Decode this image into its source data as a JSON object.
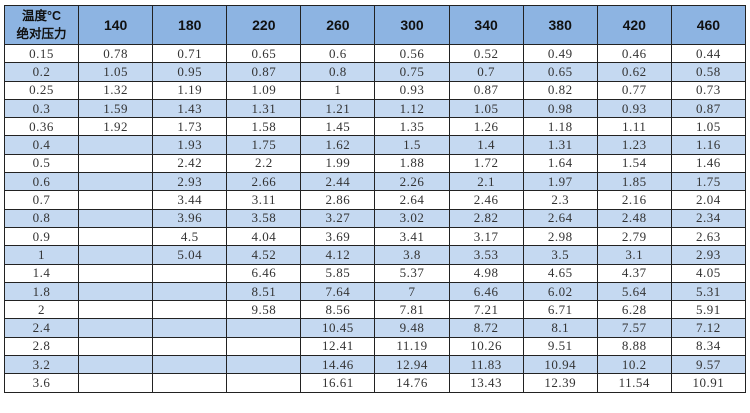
{
  "table": {
    "corner_label_top": "温度°C",
    "corner_label_bottom": "绝对压力",
    "header_colors": {
      "header": "#8db4e2",
      "alt_row": "#c5d9f1"
    },
    "columns": [
      "140",
      "180",
      "220",
      "260",
      "300",
      "340",
      "380",
      "420",
      "460"
    ],
    "rows": [
      {
        "pressure": "0.15",
        "values": [
          "0.78",
          "0.71",
          "0.65",
          "0.6",
          "0.56",
          "0.52",
          "0.49",
          "0.46",
          "0.44"
        ]
      },
      {
        "pressure": "0.2",
        "values": [
          "1.05",
          "0.95",
          "0.87",
          "0.8",
          "0.75",
          "0.7",
          "0.65",
          "0.62",
          "0.58"
        ]
      },
      {
        "pressure": "0.25",
        "values": [
          "1.32",
          "1.19",
          "1.09",
          "1",
          "0.93",
          "0.87",
          "0.82",
          "0.77",
          "0.73"
        ]
      },
      {
        "pressure": "0.3",
        "values": [
          "1.59",
          "1.43",
          "1.31",
          "1.21",
          "1.12",
          "1.05",
          "0.98",
          "0.93",
          "0.87"
        ]
      },
      {
        "pressure": "0.36",
        "values": [
          "1.92",
          "1.73",
          "1.58",
          "1.45",
          "1.35",
          "1.26",
          "1.18",
          "1.11",
          "1.05"
        ]
      },
      {
        "pressure": "0.4",
        "values": [
          "",
          "1.93",
          "1.75",
          "1.62",
          "1.5",
          "1.4",
          "1.31",
          "1.23",
          "1.16"
        ]
      },
      {
        "pressure": "0.5",
        "values": [
          "",
          "2.42",
          "2.2",
          "1.99",
          "1.88",
          "1.72",
          "1.64",
          "1.54",
          "1.46"
        ]
      },
      {
        "pressure": "0.6",
        "values": [
          "",
          "2.93",
          "2.66",
          "2.44",
          "2.26",
          "2.1",
          "1.97",
          "1.85",
          "1.75"
        ]
      },
      {
        "pressure": "0.7",
        "values": [
          "",
          "3.44",
          "3.11",
          "2.86",
          "2.64",
          "2.46",
          "2.3",
          "2.16",
          "2.04"
        ]
      },
      {
        "pressure": "0.8",
        "values": [
          "",
          "3.96",
          "3.58",
          "3.27",
          "3.02",
          "2.82",
          "2.64",
          "2.48",
          "2.34"
        ]
      },
      {
        "pressure": "0.9",
        "values": [
          "",
          "4.5",
          "4.04",
          "3.69",
          "3.41",
          "3.17",
          "2.98",
          "2.79",
          "2.63"
        ]
      },
      {
        "pressure": "1",
        "values": [
          "",
          "5.04",
          "4.52",
          "4.12",
          "3.8",
          "3.53",
          "3.5",
          "3.1",
          "2.93"
        ]
      },
      {
        "pressure": "1.4",
        "values": [
          "",
          "",
          "6.46",
          "5.85",
          "5.37",
          "4.98",
          "4.65",
          "4.37",
          "4.05"
        ]
      },
      {
        "pressure": "1.8",
        "values": [
          "",
          "",
          "8.51",
          "7.64",
          "7",
          "6.46",
          "6.02",
          "5.64",
          "5.31"
        ]
      },
      {
        "pressure": "2",
        "values": [
          "",
          "",
          "9.58",
          "8.56",
          "7.81",
          "7.21",
          "6.71",
          "6.28",
          "5.91"
        ]
      },
      {
        "pressure": "2.4",
        "values": [
          "",
          "",
          "",
          "10.45",
          "9.48",
          "8.72",
          "8.1",
          "7.57",
          "7.12"
        ]
      },
      {
        "pressure": "2.8",
        "values": [
          "",
          "",
          "",
          "12.41",
          "11.19",
          "10.26",
          "9.51",
          "8.88",
          "8.34"
        ]
      },
      {
        "pressure": "3.2",
        "values": [
          "",
          "",
          "",
          "14.46",
          "12.94",
          "11.83",
          "10.94",
          "10.2",
          "9.57"
        ]
      },
      {
        "pressure": "3.6",
        "values": [
          "",
          "",
          "",
          "16.61",
          "14.76",
          "13.43",
          "12.39",
          "11.54",
          "10.91"
        ]
      }
    ]
  }
}
